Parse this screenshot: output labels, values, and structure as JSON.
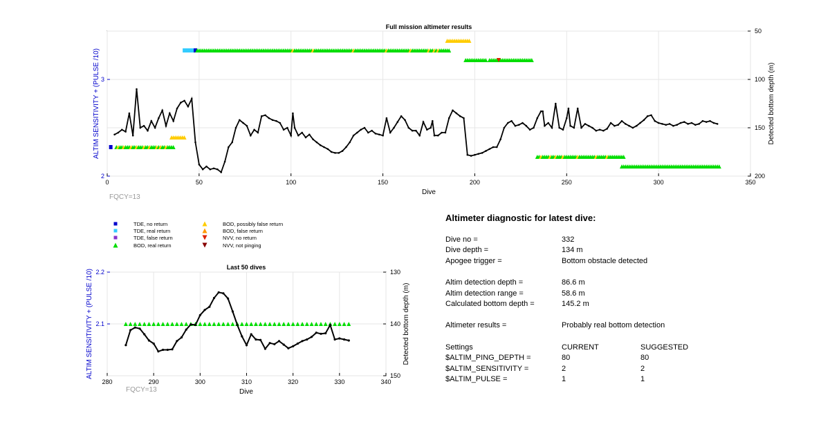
{
  "main_chart": {
    "title": "Full mission altimeter results",
    "xlabel": "Dive",
    "ylabel_left": "ALTIM SENSITIVITY + (PULSE /10)",
    "ylabel_right": "Detected bottom depth (m)",
    "xlim": [
      0,
      350
    ],
    "ylim_left": [
      2,
      3.5
    ],
    "ylim_right": [
      50,
      200
    ],
    "right_axis_reversed": true,
    "xticks": [
      "0",
      "50",
      "100",
      "150",
      "200",
      "250",
      "300",
      "350"
    ],
    "yticks_left": [
      "2",
      "3"
    ],
    "yticks_right": [
      "50",
      "100",
      "150",
      "200"
    ],
    "fqcy_label": "FQCY=13",
    "grid": true
  },
  "zoom_chart": {
    "title": "Last 50 dives",
    "xlabel": "Dive",
    "ylabel_left": "ALTIM SENSITIVITY + (PULSE /10)",
    "ylabel_right": "Detected bottom depth (m)",
    "xlim": [
      280,
      340
    ],
    "ylim_left": [
      2,
      2.2
    ],
    "ylim_right": [
      130,
      150
    ],
    "right_axis_reversed": true,
    "xticks": [
      "280",
      "290",
      "300",
      "310",
      "320",
      "330",
      "340"
    ],
    "yticks_left": [
      "2.1",
      "2.2"
    ],
    "yticks_right": [
      "130",
      "140",
      "150"
    ],
    "fqcy_label": "FQCY=13",
    "grid": true
  },
  "legend": {
    "items": [
      {
        "label": "TDE, no return",
        "marker": "square",
        "color": "#0000cc"
      },
      {
        "label": "TDE, real return",
        "marker": "square",
        "color": "#33ccff"
      },
      {
        "label": "TDE, false return",
        "marker": "square",
        "color": "#8833cc"
      },
      {
        "label": "BOD, real return",
        "marker": "triangle-up",
        "color": "#00dd00"
      },
      {
        "label": "BOD, possibly false return",
        "marker": "triangle-up",
        "color": "#ffcc00"
      },
      {
        "label": "BOD, false return",
        "marker": "triangle-up",
        "color": "#ff9900"
      },
      {
        "label": "NVV, no return",
        "marker": "triangle-down",
        "color": "#dd2200"
      },
      {
        "label": "NVV, not pinging",
        "marker": "triangle-down",
        "color": "#880000"
      }
    ]
  },
  "colors": {
    "axis_blue": "#0000cc",
    "depth_line": "#000000",
    "bod_real": "#00dd00",
    "bod_possibly_false": "#ffcc00",
    "tde_no_return": "#0000cc",
    "tde_real": "#33ccff",
    "nvv_no_return": "#dd2200",
    "fqcy_gray": "#999999"
  },
  "chart_data": [
    {
      "type": "line",
      "title": "Full mission altimeter results",
      "xlabel": "Dive",
      "ylabel": "Detected bottom depth (m)",
      "xlim": [
        0,
        350
      ],
      "ylim": [
        50,
        200
      ],
      "series": [
        {
          "x": [
            4,
            6,
            8,
            10,
            12,
            14,
            16,
            18,
            20,
            22,
            24,
            26,
            28,
            30,
            32,
            34,
            36,
            38,
            40,
            42,
            44,
            46,
            48,
            50,
            52,
            54,
            56,
            58,
            60,
            62,
            64,
            66,
            68,
            70,
            72,
            74,
            76,
            78,
            80,
            82,
            84,
            86,
            88,
            90,
            92,
            94,
            96,
            98,
            100,
            101,
            102,
            104,
            106,
            108,
            110,
            112,
            114,
            116,
            118,
            120,
            122,
            124,
            126,
            128,
            130,
            132,
            134,
            136,
            138,
            140,
            142,
            144,
            146,
            148,
            150,
            152,
            154,
            156,
            158,
            160,
            162,
            164,
            166,
            168,
            170,
            172,
            174,
            176,
            177,
            178,
            180,
            182,
            184,
            186,
            188,
            190,
            192,
            194,
            196,
            198,
            200,
            202,
            204,
            206,
            208,
            210,
            212,
            214,
            216,
            218,
            220,
            222,
            224,
            226,
            228,
            230,
            232,
            234,
            236,
            237,
            238,
            240,
            242,
            244,
            246,
            248,
            250,
            251,
            252,
            254,
            256,
            258,
            260,
            262,
            264,
            266,
            268,
            270,
            272,
            274,
            276,
            278,
            280,
            282,
            284,
            286,
            288,
            290,
            292,
            294,
            296,
            298,
            300,
            302,
            304,
            306,
            308,
            310,
            312,
            314,
            316,
            318,
            320,
            322,
            324,
            326,
            328,
            330,
            332
          ],
          "y": [
            157,
            155,
            152,
            154,
            135,
            158,
            110,
            150,
            148,
            153,
            143,
            150,
            140,
            132,
            148,
            135,
            143,
            130,
            124,
            122,
            128,
            120,
            165,
            188,
            193,
            190,
            193,
            192,
            193,
            196,
            185,
            170,
            165,
            150,
            142,
            145,
            148,
            158,
            152,
            155,
            138,
            137,
            140,
            142,
            143,
            145,
            152,
            150,
            158,
            135,
            150,
            158,
            155,
            160,
            157,
            162,
            165,
            168,
            170,
            172,
            175,
            176,
            176,
            174,
            170,
            165,
            158,
            155,
            152,
            150,
            155,
            153,
            156,
            157,
            158,
            140,
            155,
            150,
            144,
            138,
            142,
            150,
            153,
            153,
            158,
            144,
            152,
            150,
            143,
            158,
            158,
            155,
            155,
            140,
            132,
            135,
            138,
            140,
            178,
            179,
            178,
            177,
            176,
            174,
            172,
            170,
            170,
            162,
            150,
            145,
            143,
            148,
            147,
            145,
            148,
            152,
            150,
            140,
            133,
            133,
            148,
            145,
            150,
            125,
            150,
            152,
            140,
            130,
            148,
            150,
            130,
            150,
            146,
            148,
            150,
            153,
            152,
            153,
            151,
            145,
            148,
            147,
            143,
            146,
            148,
            150,
            148,
            145,
            142,
            138,
            137,
            143,
            145,
            146,
            147,
            146,
            148,
            147,
            145,
            144,
            146,
            145,
            147,
            146,
            143,
            144,
            143,
            145,
            146
          ]
        }
      ]
    },
    {
      "type": "line",
      "title": "Last 50 dives",
      "xlabel": "Dive",
      "ylabel": "Detected bottom depth (m)",
      "xlim": [
        280,
        340
      ],
      "ylim": [
        130,
        150
      ],
      "series": [
        {
          "x": [
            284,
            285,
            286,
            287,
            288,
            289,
            290,
            291,
            292,
            293,
            294,
            295,
            296,
            297,
            298,
            299,
            300,
            301,
            302,
            303,
            304,
            305,
            306,
            307,
            308,
            309,
            310,
            311,
            312,
            313,
            314,
            315,
            316,
            317,
            318,
            319,
            320,
            321,
            322,
            323,
            324,
            325,
            326,
            327,
            328,
            329,
            330,
            331,
            332
          ],
          "y": [
            144.1,
            141.2,
            140.7,
            140.9,
            142.0,
            143.2,
            143.8,
            145.3,
            145.0,
            145.0,
            144.9,
            143.3,
            142.6,
            141.1,
            140.1,
            140.2,
            138.3,
            137.3,
            136.7,
            135.0,
            133.9,
            134.1,
            135.1,
            137.6,
            140.2,
            142.4,
            144.1,
            142.0,
            143.0,
            143.1,
            144.8,
            143.7,
            143.9,
            143.3,
            144.0,
            144.7,
            144.3,
            143.8,
            143.3,
            143.0,
            142.5,
            141.7,
            141.9,
            141.8,
            140.2,
            143.0,
            142.8,
            143.0,
            143.2
          ]
        }
      ]
    }
  ],
  "diagnostic": {
    "title": "Altimeter diagnostic for latest dive:",
    "dive_no": {
      "label": "Dive no =",
      "value": "332"
    },
    "dive_depth": {
      "label": "Dive depth =",
      "value": "134 m"
    },
    "apogee": {
      "label": "Apogee trigger =",
      "value": "Bottom obstacle detected"
    },
    "altim_det_depth": {
      "label": "Altim detection depth =",
      "value": "86.6 m"
    },
    "altim_det_range": {
      "label": "Altim detection range =",
      "value": "58.6 m"
    },
    "calc_bottom": {
      "label": "Calculated bottom depth =",
      "value": "145.2 m"
    },
    "results": {
      "label": "Altimeter results =",
      "value": "Probably real bottom detection"
    },
    "settings": {
      "header_label": "Settings",
      "header_current": "CURRENT",
      "header_suggested": "SUGGESTED",
      "ping_depth": {
        "label": "$ALTIM_PING_DEPTH =",
        "current": "80",
        "suggested": "80"
      },
      "sensitivity": {
        "label": "$ALTIM_SENSITIVITY =",
        "current": "2",
        "suggested": "2"
      },
      "pulse": {
        "label": "$ALTIM_PULSE =",
        "current": "1",
        "suggested": "1"
      }
    }
  }
}
